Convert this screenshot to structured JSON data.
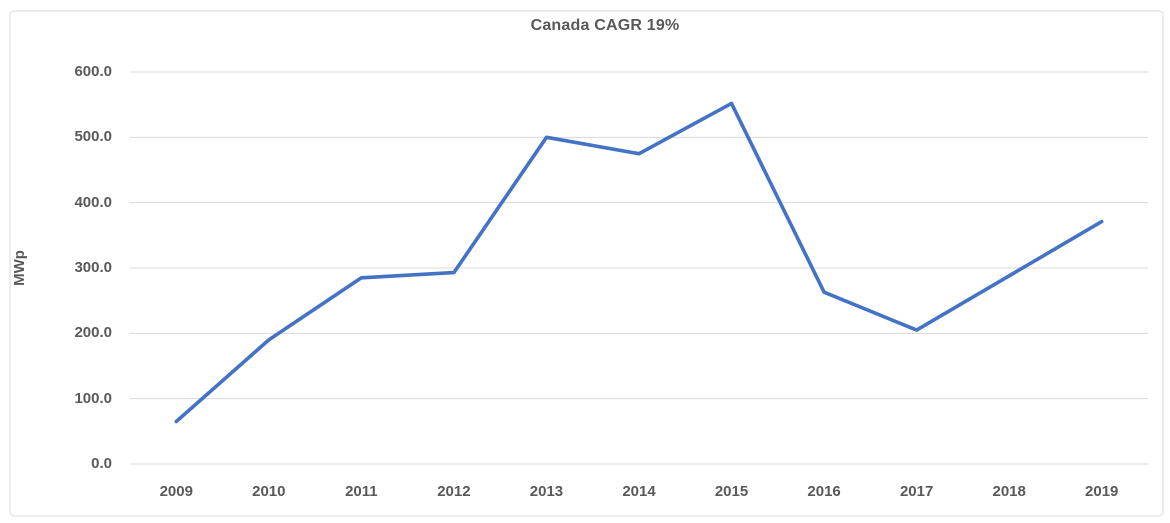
{
  "frame": {
    "background": "#FFFFFF",
    "border_color": "#ECECEC"
  },
  "chart_data": {
    "type": "line",
    "title": "Canada CAGR 19%",
    "xlabel": "",
    "ylabel": "MWp",
    "categories": [
      "2009",
      "2010",
      "2011",
      "2012",
      "2013",
      "2014",
      "2015",
      "2016",
      "2017",
      "2018",
      "2019"
    ],
    "values": [
      65,
      190,
      285,
      293,
      500,
      475,
      552,
      263,
      205,
      288,
      371
    ],
    "ylim": [
      0,
      600
    ],
    "yticks": [
      0,
      100,
      200,
      300,
      400,
      500,
      600
    ],
    "ytick_labels": [
      "0.0",
      "100.0",
      "200.0",
      "300.0",
      "400.0",
      "500.0",
      "600.0"
    ],
    "grid": "horizontal",
    "legend_position": "none",
    "markers": "none",
    "colors": {
      "line": "#4472C4",
      "gridline": "#DADADA",
      "text": "#595959"
    }
  }
}
